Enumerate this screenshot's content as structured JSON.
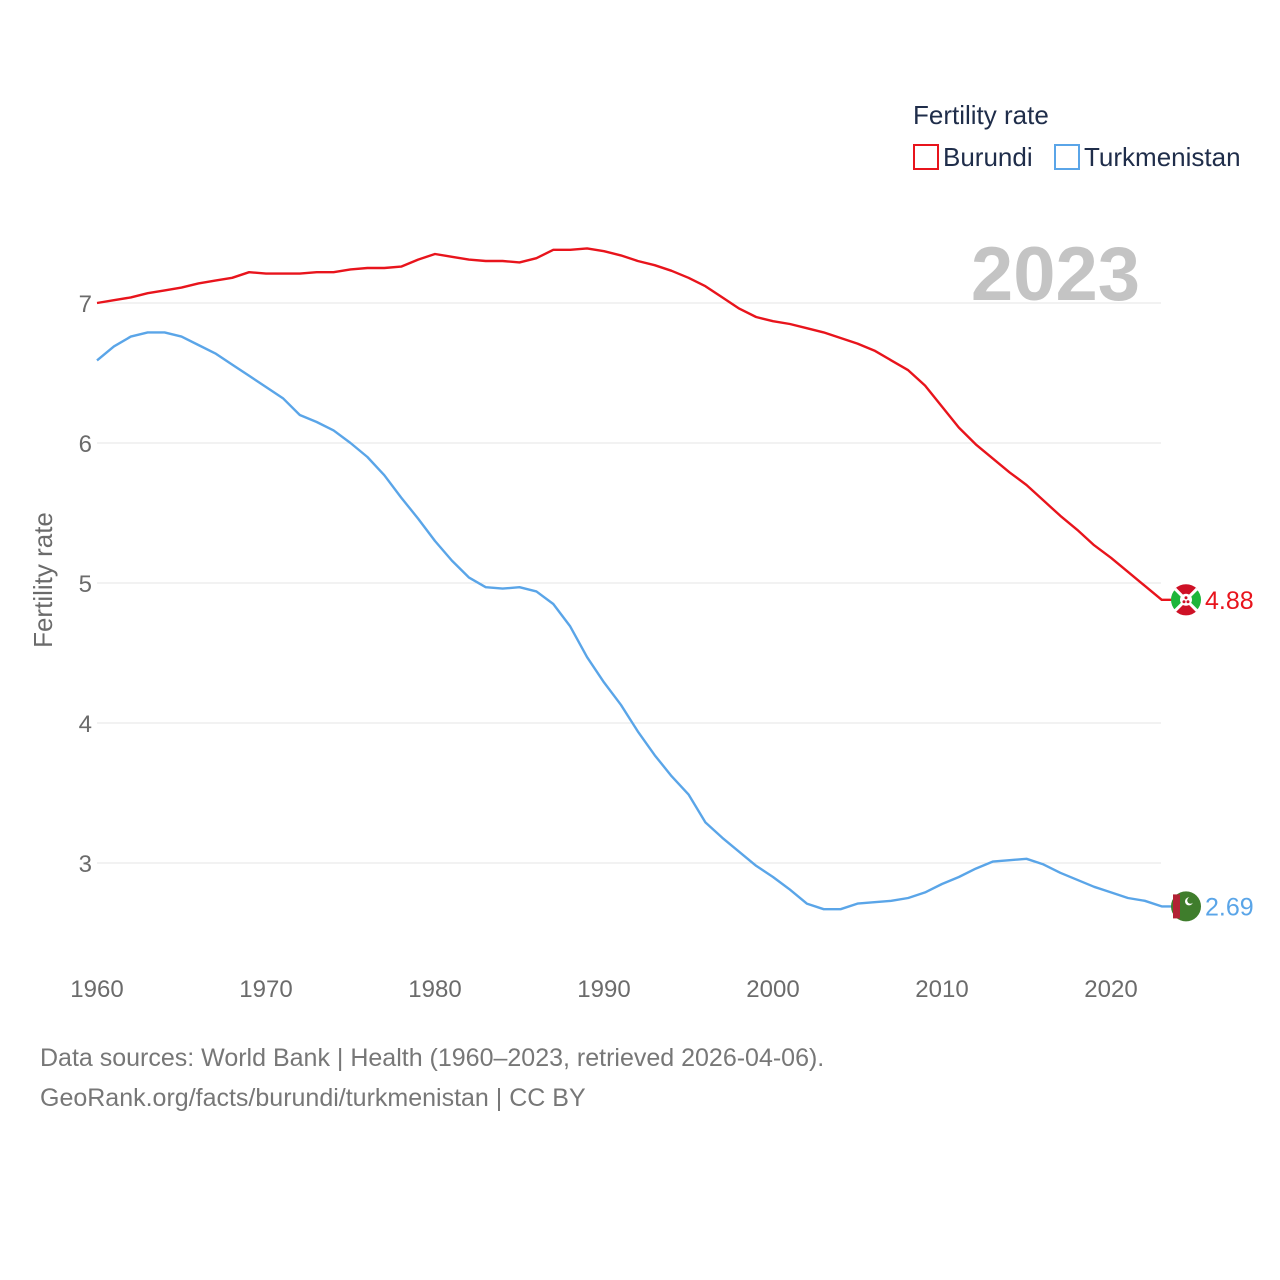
{
  "legend": {
    "title": "Fertility rate"
  },
  "year_label": "2023",
  "source": {
    "line1": "Data sources: World Bank | Health (1960–2023, retrieved 2026-04-06).",
    "line2": "GeoRank.org/facts/burundi/turkmenistan | CC BY"
  },
  "chart_data": {
    "type": "line",
    "title": "Fertility rate",
    "xlabel": "",
    "ylabel": "Fertility rate",
    "xlim": [
      1960,
      2023
    ],
    "ylim": [
      2.4,
      7.7
    ],
    "xticks": [
      1960,
      1970,
      1980,
      1990,
      2000,
      2010,
      2020
    ],
    "yticks": [
      3,
      4,
      5,
      6,
      7
    ],
    "grid": true,
    "legend_position": "top-right",
    "x": [
      1960,
      1961,
      1962,
      1963,
      1964,
      1965,
      1966,
      1967,
      1968,
      1969,
      1970,
      1971,
      1972,
      1973,
      1974,
      1975,
      1976,
      1977,
      1978,
      1979,
      1980,
      1981,
      1982,
      1983,
      1984,
      1985,
      1986,
      1987,
      1988,
      1989,
      1990,
      1991,
      1992,
      1993,
      1994,
      1995,
      1996,
      1997,
      1998,
      1999,
      2000,
      2001,
      2002,
      2003,
      2004,
      2005,
      2006,
      2007,
      2008,
      2009,
      2010,
      2011,
      2012,
      2013,
      2014,
      2015,
      2016,
      2017,
      2018,
      2019,
      2020,
      2021,
      2022,
      2023
    ],
    "series": [
      {
        "name": "Burundi",
        "color": "#e8141c",
        "end_label": "4.88",
        "flag": "burundi-flag-icon",
        "values": [
          7.0,
          7.02,
          7.04,
          7.07,
          7.09,
          7.11,
          7.14,
          7.16,
          7.18,
          7.22,
          7.21,
          7.21,
          7.21,
          7.22,
          7.22,
          7.24,
          7.25,
          7.25,
          7.26,
          7.31,
          7.35,
          7.33,
          7.31,
          7.3,
          7.3,
          7.29,
          7.32,
          7.38,
          7.38,
          7.39,
          7.37,
          7.34,
          7.3,
          7.27,
          7.23,
          7.18,
          7.12,
          7.04,
          6.96,
          6.9,
          6.87,
          6.85,
          6.82,
          6.79,
          6.75,
          6.71,
          6.66,
          6.59,
          6.52,
          6.41,
          6.26,
          6.11,
          5.99,
          5.89,
          5.79,
          5.7,
          5.59,
          5.48,
          5.38,
          5.27,
          5.18,
          5.08,
          4.98,
          4.88
        ]
      },
      {
        "name": "Turkmenistan",
        "color": "#5aa5e8",
        "end_label": "2.69",
        "flag": "turkmenistan-flag-icon",
        "values": [
          6.59,
          6.69,
          6.76,
          6.79,
          6.79,
          6.76,
          6.7,
          6.64,
          6.56,
          6.48,
          6.4,
          6.32,
          6.2,
          6.15,
          6.09,
          6.0,
          5.9,
          5.77,
          5.61,
          5.46,
          5.3,
          5.16,
          5.04,
          4.97,
          4.96,
          4.97,
          4.94,
          4.85,
          4.69,
          4.47,
          4.29,
          4.13,
          3.94,
          3.77,
          3.62,
          3.49,
          3.29,
          3.18,
          3.08,
          2.98,
          2.9,
          2.81,
          2.71,
          2.67,
          2.67,
          2.71,
          2.72,
          2.73,
          2.75,
          2.79,
          2.85,
          2.9,
          2.96,
          3.01,
          3.02,
          3.03,
          2.99,
          2.93,
          2.88,
          2.83,
          2.79,
          2.75,
          2.73,
          2.69
        ]
      }
    ]
  }
}
